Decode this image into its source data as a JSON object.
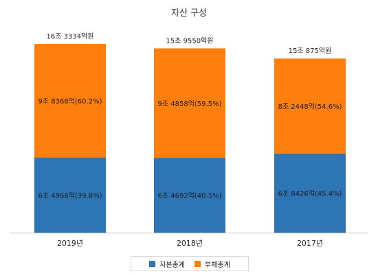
{
  "chart_data": {
    "type": "bar",
    "stacked": true,
    "title": "자산 구성",
    "categories": [
      "2019년",
      "2018년",
      "2017년"
    ],
    "series": [
      {
        "name": "자본총계",
        "color": "#2e75b6",
        "values": [
          6.4966,
          6.4692,
          6.8426
        ],
        "labels": [
          "6조 4966억(39.8%)",
          "6조 4692억(40.5%)",
          "6조 8426억(45.4%)"
        ]
      },
      {
        "name": "부채총계",
        "color": "#ff7f0e",
        "values": [
          9.8368,
          9.4858,
          8.2448
        ],
        "labels": [
          "9조 8368억(60.2%)",
          "9조 4858억(59.5%)",
          "8조 2448억(54.6%)"
        ]
      }
    ],
    "totals": [
      "16조 3334억원",
      "15조 9550억원",
      "15조 875억원"
    ],
    "ylim": [
      0,
      16.3334
    ],
    "grid": false,
    "legend_position": "bottom"
  }
}
